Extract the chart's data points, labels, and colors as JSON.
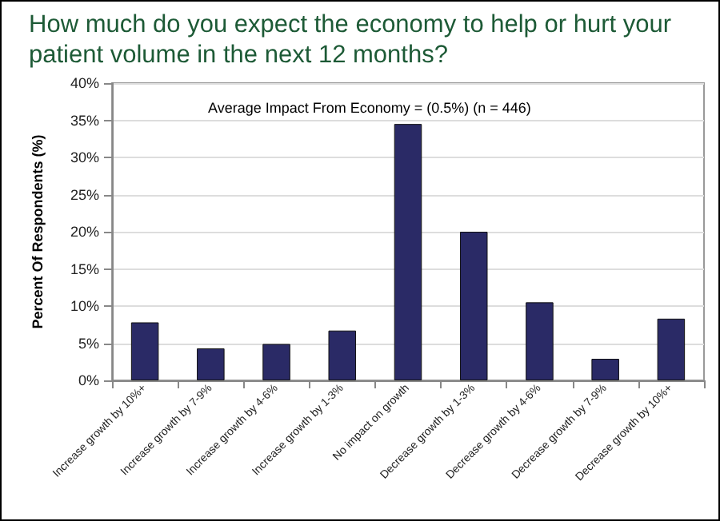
{
  "chart_data": {
    "type": "bar",
    "title": "How much do you expect the economy to help or hurt your patient volume in the next 12 months?",
    "ylabel": "Percent Of Respondents (%)",
    "annotations": [
      "Average Impact From Economy = (0.5%) (n = 446)"
    ],
    "categories": [
      "Increase growth by 10%+",
      "Increase growth by 7-9%",
      "Increase growth by 4-6%",
      "Increase growth by 1-3%",
      "No impact on growth",
      "Decrease growth by 1-3%",
      "Decrease growth by 4-6%",
      "Decrease growth by 7-9%",
      "Decrease growth by 10%+"
    ],
    "values": [
      7.8,
      4.3,
      4.9,
      6.7,
      34.5,
      20,
      10.5,
      2.9,
      8.3
    ],
    "color": "#2a2a66",
    "ylim": [
      0,
      40
    ],
    "yticks": [
      {
        "value": 0,
        "label": "0%"
      },
      {
        "value": 5,
        "label": "5%"
      },
      {
        "value": 10,
        "label": "10%"
      },
      {
        "value": 15,
        "label": "15%"
      },
      {
        "value": 20,
        "label": "20%"
      },
      {
        "value": 25,
        "label": "25%"
      },
      {
        "value": 30,
        "label": "30%"
      },
      {
        "value": 35,
        "label": "35%"
      },
      {
        "value": 40,
        "label": "40%"
      }
    ],
    "grid": "y"
  }
}
